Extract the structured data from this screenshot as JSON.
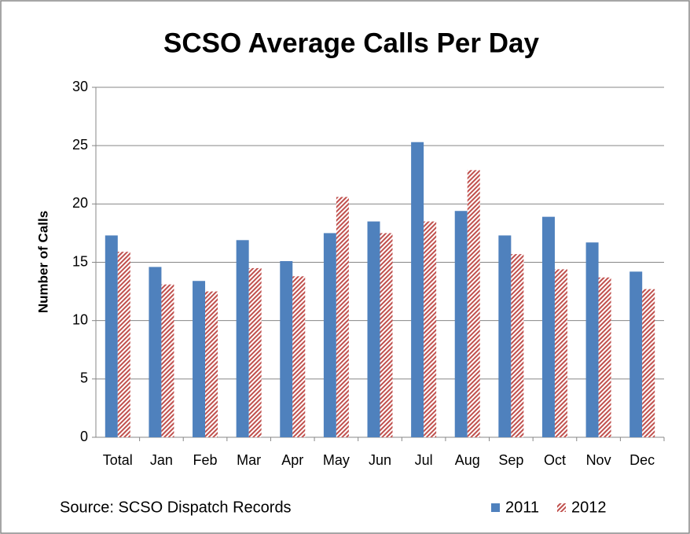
{
  "chart_data": {
    "type": "bar",
    "title": "SCSO Average Calls Per Day",
    "y_label": "Number of Calls",
    "annotation": "Source: SCSO Dispatch Records",
    "categories": [
      "Total",
      "Jan",
      "Feb",
      "Mar",
      "Apr",
      "May",
      "Jun",
      "Jul",
      "Aug",
      "Sep",
      "Oct",
      "Nov",
      "Dec"
    ],
    "series": [
      {
        "name": "2011",
        "color": "#4f81bd",
        "values": [
          17.3,
          14.6,
          13.4,
          16.9,
          15.1,
          17.5,
          18.5,
          25.3,
          19.4,
          17.3,
          18.9,
          16.7,
          14.2
        ]
      },
      {
        "name": "2012",
        "color": "#c0504d",
        "pattern": "diagonal-stripes",
        "values": [
          15.9,
          13.1,
          12.5,
          14.5,
          13.8,
          20.6,
          17.5,
          18.5,
          22.9,
          15.7,
          14.4,
          13.7,
          12.7
        ]
      }
    ],
    "ylim": [
      0,
      30
    ],
    "yticks": [
      0,
      5,
      10,
      15,
      20,
      25,
      30
    ],
    "grid": true,
    "legend": "bottom-right"
  }
}
